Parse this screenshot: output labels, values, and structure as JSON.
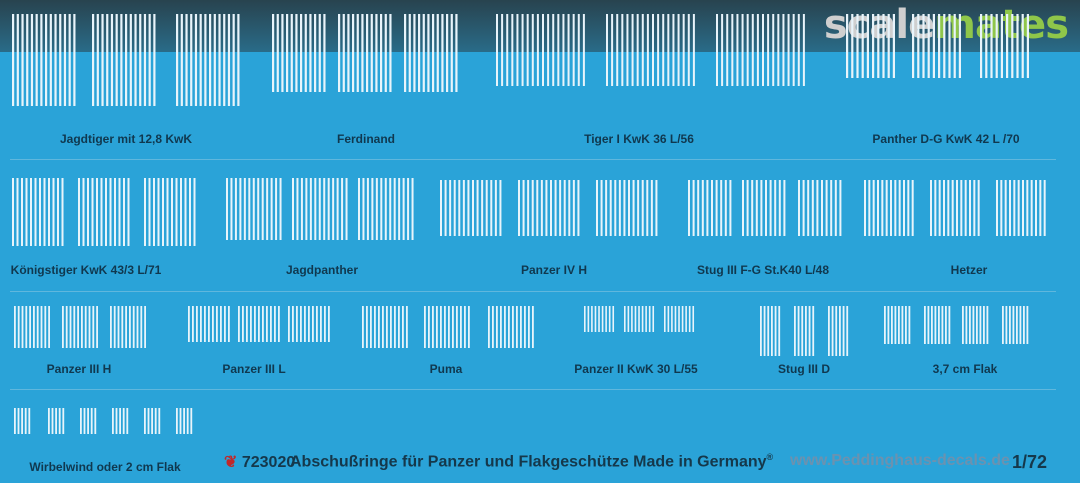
{
  "watermark": {
    "part1": "scale",
    "part2": "mates",
    "color1": "#cfcfcf",
    "color2": "#8fc64a"
  },
  "colors": {
    "background": "#2aa3d8",
    "stripe": "#e8f4fb",
    "label": "#10384f"
  },
  "groups": [
    {
      "label": "Jagdtiger mit 12,8 KwK"
    },
    {
      "label": "Ferdinand"
    },
    {
      "label": "Tiger I KwK 36 L/56"
    },
    {
      "label": "Panther D-G KwK 42 L /70"
    },
    {
      "label": "Königstiger KwK 43/3 L/71"
    },
    {
      "label": "Jagdpanther"
    },
    {
      "label": "Panzer IV H"
    },
    {
      "label": "Stug III F-G St.K40 L/48"
    },
    {
      "label": "Hetzer"
    },
    {
      "label": "Panzer III H"
    },
    {
      "label": "Panzer III L"
    },
    {
      "label": "Puma"
    },
    {
      "label": "Panzer II KwK 30 L/55"
    },
    {
      "label": "Stug III D"
    },
    {
      "label": "3,7 cm Flak"
    },
    {
      "label": "Wirbelwind oder 2 cm Flak"
    }
  ],
  "footer": {
    "code": "723020",
    "title": "Abschußringe für Panzer und Flakgeschütze Made in Germany",
    "trademark": "®",
    "url": "www.Peddinghaus-decals.de",
    "scale": "1/72"
  }
}
